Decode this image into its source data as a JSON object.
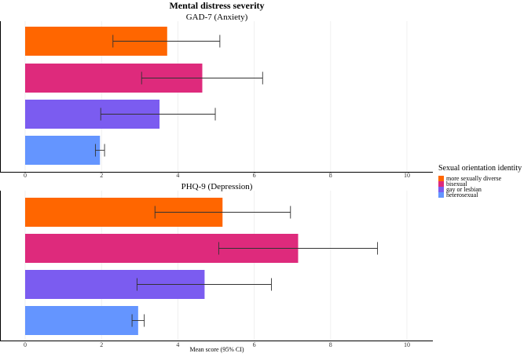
{
  "chart_data": {
    "type": "bar",
    "orientation": "horizontal",
    "title": "Mental distress severity",
    "xlabel": "Mean score (95% CI)",
    "xlim": [
      0,
      10.6
    ],
    "xticks": [
      0,
      2,
      4,
      6,
      8,
      10
    ],
    "tick_labels": [
      "0",
      "2",
      "4",
      "6",
      "8",
      "10"
    ],
    "categories": [
      "more sexually diverse",
      "bisexual",
      "gay or lesbian",
      "heterosexual"
    ],
    "colors": [
      "#FF6600",
      "#DE2A7C",
      "#7B5CF0",
      "#6495FF"
    ],
    "legend": {
      "title": "Sexual orientation identity",
      "position": "right",
      "entries": [
        "more sexually diverse",
        "bisexual",
        "gay or lesbian",
        "heterosexual"
      ]
    },
    "panels": [
      {
        "name": "GAD-7 (Anxiety)",
        "values": [
          3.72,
          4.64,
          3.52,
          1.96
        ],
        "ci_low": [
          2.3,
          3.05,
          1.98,
          1.84
        ],
        "ci_high": [
          5.1,
          6.22,
          4.98,
          2.08
        ]
      },
      {
        "name": "PHQ-9 (Depression)",
        "values": [
          5.17,
          7.15,
          4.7,
          2.96
        ],
        "ci_low": [
          3.4,
          5.07,
          2.93,
          2.8
        ],
        "ci_high": [
          6.95,
          9.23,
          6.45,
          3.12
        ]
      }
    ]
  }
}
